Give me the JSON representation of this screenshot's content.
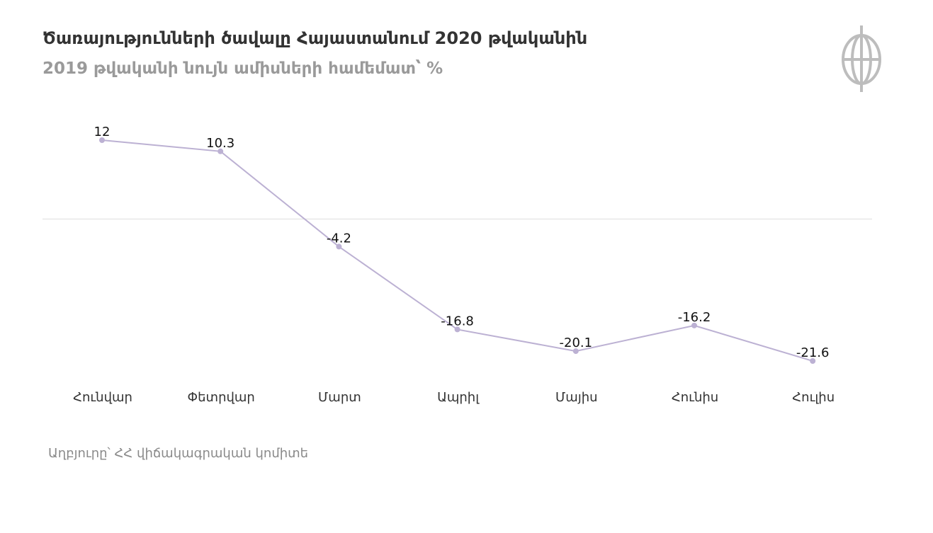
{
  "title": "Ծառայությունների ծավալը Հայաստանում 2020 թվականին",
  "subtitle": "2019 թվականի նույն ամիսների համեմատ՝ %",
  "source": "Աղբյուրը՝ ՀՀ վիճակագրական կոմիտե",
  "logo_icon": "circle-emblem-icon",
  "colors": {
    "line": "#bcb1d3",
    "marker": "#bcb1d3",
    "zero_line": "#dddddd",
    "logo": "#bdbdbd"
  },
  "chart_data": {
    "type": "line",
    "categories": [
      "Հունվար",
      "Փետրվար",
      "Մարտ",
      "Ապրիլ",
      "Մայիս",
      "Հունիս",
      "Հուլիս"
    ],
    "series": [
      {
        "values": [
          12,
          10.3,
          -4.2,
          -16.8,
          -20.1,
          -16.2,
          -21.6
        ]
      }
    ],
    "data_labels": [
      "12",
      "10.3",
      "-4.2",
      "-16.8",
      "-20.1",
      "-16.2",
      "-21.6"
    ],
    "title": "Ծառայությունների ծավալը Հայաստանում 2020 թվականին",
    "subtitle": "2019 թվականի նույն ամիսների համեմատ՝ %",
    "xlabel": "",
    "ylabel": "",
    "ylim": [
      -21.6,
      12
    ],
    "zero_line": true,
    "grid": false,
    "legend": "none"
  }
}
